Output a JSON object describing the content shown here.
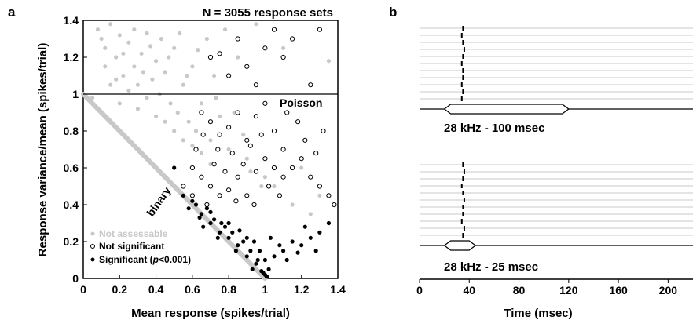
{
  "chart_data": [
    {
      "type": "scatter",
      "panel_label": "a",
      "title": "N = 3055 response sets",
      "xlabel": "Mean response (spikes/trial)",
      "ylabel": "Response variance/mean (spikes/trial)",
      "xlim": [
        0,
        1.4
      ],
      "ylim": [
        0,
        1.4
      ],
      "xticks": [
        "0",
        "0.2",
        "0.4",
        "0.6",
        "0.8",
        "1",
        "1.2",
        "1.4"
      ],
      "yticks": [
        "0",
        "0.2",
        "0.4",
        "0.6",
        "0.8",
        "1",
        "1.2",
        "1.4"
      ],
      "grid": false,
      "legend_position": "bottom-left",
      "reference_lines": [
        {
          "label": "Poisson",
          "y": 1.0
        },
        {
          "label": "binary",
          "formula": "1 - x"
        }
      ],
      "annotations": [
        "Poisson",
        "binary"
      ],
      "series": [
        {
          "name": "Not assessable",
          "marker": "filled",
          "color": "#c8c8c8",
          "points": [
            [
              0.05,
              0.98
            ],
            [
              0.08,
              1.35
            ],
            [
              0.1,
              1.3
            ],
            [
              0.12,
              1.25
            ],
            [
              0.15,
              1.38
            ],
            [
              0.18,
              1.2
            ],
            [
              0.2,
              1.32
            ],
            [
              0.22,
              1.1
            ],
            [
              0.25,
              1.28
            ],
            [
              0.28,
              1.15
            ],
            [
              0.3,
              1.05
            ],
            [
              0.32,
              1.22
            ],
            [
              0.35,
              1.33
            ],
            [
              0.38,
              1.08
            ],
            [
              0.4,
              1.18
            ],
            [
              0.42,
              1.0
            ],
            [
              0.45,
              1.12
            ],
            [
              0.48,
              0.95
            ],
            [
              0.5,
              1.25
            ],
            [
              0.52,
              0.9
            ],
            [
              0.55,
              1.05
            ],
            [
              0.58,
              0.85
            ],
            [
              0.6,
              1.15
            ],
            [
              0.62,
              0.8
            ],
            [
              0.65,
              0.95
            ],
            [
              0.68,
              1.3
            ],
            [
              0.7,
              0.75
            ],
            [
              0.72,
              1.1
            ],
            [
              0.75,
              0.88
            ],
            [
              0.78,
              1.35
            ],
            [
              0.8,
              0.7
            ],
            [
              0.85,
              1.2
            ],
            [
              0.9,
              0.65
            ],
            [
              0.95,
              1.38
            ],
            [
              1.0,
              0.55
            ],
            [
              1.05,
              0.5
            ],
            [
              1.1,
              1.25
            ],
            [
              1.2,
              0.6
            ],
            [
              1.3,
              0.45
            ],
            [
              1.35,
              1.18
            ],
            [
              0.15,
              1.05
            ],
            [
              0.2,
              0.95
            ],
            [
              0.25,
              1.02
            ],
            [
              0.3,
              0.92
            ],
            [
              0.35,
              0.98
            ],
            [
              0.4,
              0.88
            ],
            [
              0.45,
              0.85
            ],
            [
              0.5,
              0.8
            ],
            [
              0.55,
              0.75
            ],
            [
              0.6,
              0.72
            ],
            [
              0.65,
              0.68
            ],
            [
              0.7,
              0.62
            ],
            [
              0.12,
              1.15
            ],
            [
              0.18,
              1.08
            ],
            [
              0.22,
              1.22
            ],
            [
              0.28,
              1.35
            ],
            [
              0.33,
              1.12
            ],
            [
              0.37,
              1.26
            ],
            [
              0.43,
              1.3
            ],
            [
              0.47,
              1.2
            ],
            [
              0.53,
              1.33
            ],
            [
              0.57,
              1.1
            ],
            [
              0.63,
              1.24
            ],
            [
              0.73,
              0.98
            ],
            [
              0.83,
              0.9
            ],
            [
              0.88,
              0.78
            ],
            [
              0.92,
              0.58
            ],
            [
              0.98,
              0.5
            ],
            [
              1.15,
              0.4
            ],
            [
              1.25,
              0.35
            ]
          ]
        },
        {
          "name": "Not significant",
          "marker": "open",
          "color": "#000000",
          "points": [
            [
              0.7,
              1.2
            ],
            [
              0.75,
              1.22
            ],
            [
              0.8,
              1.1
            ],
            [
              0.85,
              1.3
            ],
            [
              0.9,
              1.15
            ],
            [
              0.95,
              1.05
            ],
            [
              1.0,
              1.25
            ],
            [
              1.05,
              1.35
            ],
            [
              1.1,
              1.2
            ],
            [
              1.15,
              1.3
            ],
            [
              1.25,
              1.05
            ],
            [
              1.3,
              1.35
            ],
            [
              0.65,
              0.9
            ],
            [
              0.7,
              0.85
            ],
            [
              0.75,
              0.78
            ],
            [
              0.8,
              0.82
            ],
            [
              0.85,
              0.9
            ],
            [
              0.9,
              0.75
            ],
            [
              0.95,
              0.88
            ],
            [
              1.0,
              0.95
            ],
            [
              1.05,
              0.8
            ],
            [
              1.1,
              0.7
            ],
            [
              1.15,
              0.6
            ],
            [
              1.2,
              0.65
            ],
            [
              1.25,
              0.55
            ],
            [
              1.3,
              0.5
            ],
            [
              1.35,
              0.45
            ],
            [
              0.6,
              0.6
            ],
            [
              0.65,
              0.55
            ],
            [
              0.7,
              0.5
            ],
            [
              0.75,
              0.45
            ],
            [
              0.8,
              0.48
            ],
            [
              0.85,
              0.55
            ],
            [
              0.9,
              0.45
            ],
            [
              0.95,
              0.58
            ],
            [
              1.0,
              0.65
            ],
            [
              1.05,
              0.6
            ],
            [
              1.1,
              0.55
            ],
            [
              0.55,
              0.5
            ],
            [
              0.6,
              0.45
            ],
            [
              0.68,
              0.4
            ],
            [
              0.72,
              0.62
            ],
            [
              0.78,
              0.58
            ],
            [
              0.82,
              0.68
            ],
            [
              0.88,
              0.62
            ],
            [
              0.92,
              0.72
            ],
            [
              0.98,
              0.78
            ],
            [
              1.02,
              0.5
            ],
            [
              1.08,
              0.45
            ],
            [
              1.12,
              0.9
            ],
            [
              1.18,
              0.85
            ],
            [
              1.22,
              0.75
            ],
            [
              1.28,
              0.68
            ],
            [
              1.32,
              0.8
            ],
            [
              1.38,
              0.4
            ],
            [
              0.62,
              0.7
            ],
            [
              0.66,
              0.78
            ],
            [
              0.74,
              0.7
            ],
            [
              0.84,
              0.42
            ],
            [
              0.94,
              0.4
            ]
          ]
        },
        {
          "name": "Significant (p<0.001)",
          "marker": "filled",
          "color": "#000000",
          "points": [
            [
              0.5,
              0.6
            ],
            [
              0.55,
              0.45
            ],
            [
              0.6,
              0.42
            ],
            [
              0.65,
              0.35
            ],
            [
              0.7,
              0.3
            ],
            [
              0.75,
              0.25
            ],
            [
              0.8,
              0.22
            ],
            [
              0.85,
              0.18
            ],
            [
              0.9,
              0.12
            ],
            [
              0.95,
              0.08
            ],
            [
              1.0,
              0.02
            ],
            [
              1.02,
              0.05
            ],
            [
              0.98,
              0.04
            ],
            [
              1.05,
              0.12
            ],
            [
              1.1,
              0.15
            ],
            [
              1.15,
              0.2
            ],
            [
              1.2,
              0.18
            ],
            [
              1.25,
              0.22
            ],
            [
              1.3,
              0.25
            ],
            [
              1.35,
              0.3
            ],
            [
              0.62,
              0.4
            ],
            [
              0.68,
              0.38
            ],
            [
              0.72,
              0.32
            ],
            [
              0.78,
              0.28
            ],
            [
              0.82,
              0.25
            ],
            [
              0.88,
              0.2
            ],
            [
              0.92,
              0.15
            ],
            [
              0.96,
              0.1
            ],
            [
              0.99,
              0.03
            ],
            [
              1.01,
              0.01
            ],
            [
              0.58,
              0.38
            ],
            [
              0.64,
              0.33
            ],
            [
              0.76,
              0.3
            ],
            [
              0.86,
              0.26
            ],
            [
              0.94,
              0.2
            ],
            [
              1.08,
              0.18
            ],
            [
              1.12,
              0.1
            ],
            [
              1.18,
              0.14
            ],
            [
              1.22,
              0.28
            ],
            [
              1.28,
              0.15
            ],
            [
              0.7,
              0.36
            ],
            [
              0.74,
              0.22
            ],
            [
              0.84,
              0.15
            ],
            [
              0.9,
              0.22
            ],
            [
              0.97,
              0.15
            ],
            [
              1.03,
              0.22
            ],
            [
              0.66,
              0.28
            ],
            [
              0.8,
              0.3
            ],
            [
              0.93,
              0.05
            ],
            [
              1.0,
              0.1
            ]
          ]
        }
      ]
    },
    {
      "type": "raster",
      "panel_label": "b",
      "xlabel": "Time (msec)",
      "xlim": [
        0,
        220
      ],
      "xticks": [
        "0",
        "40",
        "80",
        "120",
        "160",
        "200"
      ],
      "conditions": [
        {
          "label": "28 kHz - 100 msec",
          "stim_start": 20,
          "stim_end": 120,
          "trial_count": 11,
          "spike_times": [
            35,
            34,
            35,
            36,
            35,
            34,
            35,
            35,
            34,
            35,
            34
          ]
        },
        {
          "label": "28 kHz - 25 msec",
          "stim_start": 20,
          "stim_end": 45,
          "trial_count": 11,
          "spike_times": [
            35,
            36,
            35,
            34,
            35,
            36,
            35,
            35,
            34,
            36,
            35
          ]
        }
      ]
    }
  ],
  "legend": {
    "items": [
      {
        "label": "Not assessable",
        "color": "#c8c8c8",
        "marker": "filled"
      },
      {
        "label": "Not significant",
        "color": "#000000",
        "marker": "open"
      },
      {
        "label": "Significant (",
        "label_italic": "p",
        "label_tail": "<0.001)",
        "color": "#000000",
        "marker": "filled"
      }
    ]
  }
}
